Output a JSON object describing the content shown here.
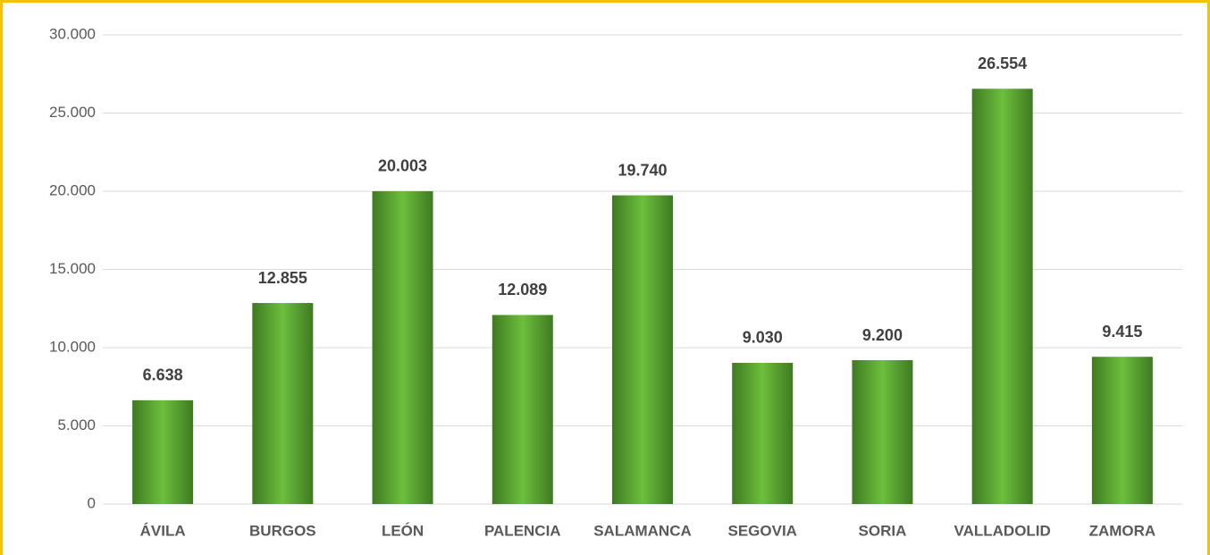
{
  "chart_data": {
    "type": "bar",
    "categories": [
      "ÁVILA",
      "BURGOS",
      "LEÓN",
      "PALENCIA",
      "SALAMANCA",
      "SEGOVIA",
      "SORIA",
      "VALLADOLID",
      "ZAMORA"
    ],
    "values": [
      6638,
      12855,
      20003,
      12089,
      19740,
      9030,
      9200,
      26554,
      9415
    ],
    "value_labels": [
      "6.638",
      "12.855",
      "20.003",
      "12.089",
      "19.740",
      "9.030",
      "9.200",
      "26.554",
      "9.415"
    ],
    "color": "#6cbf3c",
    "ylim": [
      0,
      30000
    ],
    "yticks": [
      0,
      {
        "value": 5000,
        "label": "5.000"
      },
      {
        "value": 10000,
        "label": "10.000"
      },
      {
        "value": 15000,
        "label": "15.000"
      },
      {
        "value": 20000,
        "label": "20.000"
      },
      {
        "value": 25000,
        "label": "25.000"
      },
      {
        "value": 30000,
        "label": "30.000"
      }
    ],
    "grid": true
  }
}
